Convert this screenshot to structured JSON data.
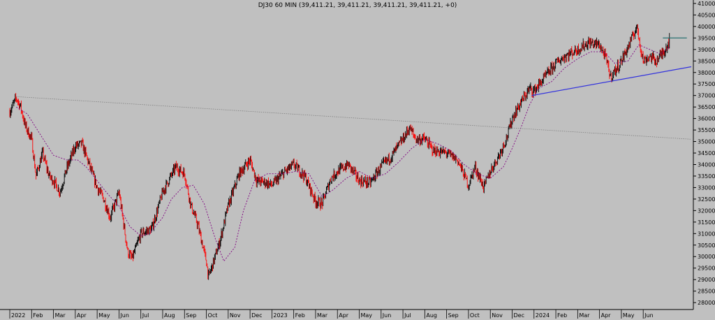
{
  "chart_data": {
    "type": "candlestick",
    "title": "DJ30 60 MIN (39,411.21, 39,411.21, 39,411.21, 39,411.21, +0)",
    "xlabel": "",
    "ylabel": "",
    "ylim": [
      27700,
      41150
    ],
    "y_ticks": [
      28000,
      28500,
      29000,
      29500,
      30000,
      30500,
      31000,
      31500,
      32000,
      32500,
      33000,
      33500,
      34000,
      34500,
      35000,
      35500,
      36000,
      36500,
      37000,
      37500,
      38000,
      38500,
      39000,
      39500,
      40000,
      40500,
      41000
    ],
    "x_months": [
      "2022",
      "Feb",
      "Mar",
      "Apr",
      "May",
      "Jun",
      "Jul",
      "Aug",
      "Sep",
      "Oct",
      "Nov",
      "Dec",
      "2023",
      "Feb",
      "Mar",
      "Apr",
      "May",
      "Jun",
      "Jul",
      "Aug",
      "Sep",
      "Oct",
      "Nov",
      "Dec",
      "2024",
      "Feb",
      "Mar",
      "Apr",
      "May",
      "Jun"
    ],
    "price_path_monthly": [
      [
        0,
        36300
      ],
      [
        0.3,
        36900
      ],
      [
        0.5,
        36500
      ],
      [
        0.7,
        35700
      ],
      [
        1,
        35100
      ],
      [
        1.2,
        33500
      ],
      [
        1.5,
        34500
      ],
      [
        1.8,
        33500
      ],
      [
        2,
        33300
      ],
      [
        2.3,
        32800
      ],
      [
        2.6,
        33800
      ],
      [
        3,
        34800
      ],
      [
        3.3,
        34900
      ],
      [
        3.6,
        34100
      ],
      [
        4,
        33000
      ],
      [
        4.3,
        32500
      ],
      [
        4.6,
        31700
      ],
      [
        5,
        32800
      ],
      [
        5.4,
        30200
      ],
      [
        5.6,
        29900
      ],
      [
        6,
        31000
      ],
      [
        6.5,
        31200
      ],
      [
        7,
        32800
      ],
      [
        7.6,
        33900
      ],
      [
        8,
        33600
      ],
      [
        8.3,
        32200
      ],
      [
        8.6,
        31400
      ],
      [
        9,
        29800
      ],
      [
        9.1,
        29100
      ],
      [
        9.3,
        29700
      ],
      [
        9.6,
        30600
      ],
      [
        10,
        32200
      ],
      [
        10.5,
        33600
      ],
      [
        11,
        34200
      ],
      [
        11.3,
        33300
      ],
      [
        11.8,
        33200
      ],
      [
        12,
        33100
      ],
      [
        12.5,
        33600
      ],
      [
        13,
        34000
      ],
      [
        13.5,
        33500
      ],
      [
        14,
        32400
      ],
      [
        14.3,
        32300
      ],
      [
        14.7,
        33400
      ],
      [
        15,
        33700
      ],
      [
        15.5,
        34000
      ],
      [
        16,
        33300
      ],
      [
        16.5,
        33200
      ],
      [
        17,
        33900
      ],
      [
        17.5,
        34400
      ],
      [
        18,
        35100
      ],
      [
        18.3,
        35600
      ],
      [
        18.6,
        35100
      ],
      [
        19,
        35100
      ],
      [
        19.4,
        34600
      ],
      [
        20,
        34500
      ],
      [
        20.5,
        34200
      ],
      [
        21,
        33100
      ],
      [
        21.3,
        33900
      ],
      [
        21.7,
        33000
      ],
      [
        22,
        33700
      ],
      [
        22.4,
        34400
      ],
      [
        22.8,
        35300
      ],
      [
        23,
        36000
      ],
      [
        23.4,
        36700
      ],
      [
        23.8,
        37300
      ],
      [
        24,
        37200
      ],
      [
        24.5,
        37800
      ],
      [
        25,
        38400
      ],
      [
        25.4,
        38700
      ],
      [
        26,
        39000
      ],
      [
        26.5,
        39300
      ],
      [
        27,
        39200
      ],
      [
        27.3,
        38600
      ],
      [
        27.5,
        37800
      ],
      [
        27.8,
        38200
      ],
      [
        28,
        38500
      ],
      [
        28.5,
        39500
      ],
      [
        28.7,
        40000
      ],
      [
        29,
        38500
      ],
      [
        29.3,
        38700
      ],
      [
        29.6,
        38500
      ],
      [
        30,
        39000
      ],
      [
        30.2,
        39411
      ]
    ],
    "moving_average_monthly": [
      [
        0.3,
        36500
      ],
      [
        0.8,
        36200
      ],
      [
        1.4,
        35300
      ],
      [
        2,
        34400
      ],
      [
        2.6,
        34200
      ],
      [
        3.1,
        34200
      ],
      [
        3.5,
        33900
      ],
      [
        4,
        33300
      ],
      [
        4.5,
        32700
      ],
      [
        5,
        32200
      ],
      [
        5.5,
        31300
      ],
      [
        6,
        30900
      ],
      [
        6.4,
        31000
      ],
      [
        7,
        31700
      ],
      [
        7.4,
        32500
      ],
      [
        7.9,
        33000
      ],
      [
        8.4,
        33100
      ],
      [
        8.9,
        32300
      ],
      [
        9.4,
        30800
      ],
      [
        9.8,
        29800
      ],
      [
        10.3,
        30400
      ],
      [
        10.7,
        32000
      ],
      [
        11.2,
        33300
      ],
      [
        11.8,
        33600
      ],
      [
        12.5,
        33600
      ],
      [
        13.1,
        33700
      ],
      [
        13.7,
        33600
      ],
      [
        14.3,
        32600
      ],
      [
        14.8,
        32900
      ],
      [
        15.4,
        33400
      ],
      [
        16,
        33700
      ],
      [
        16.6,
        33400
      ],
      [
        17.2,
        33600
      ],
      [
        17.8,
        34100
      ],
      [
        18.4,
        34700
      ],
      [
        19,
        35100
      ],
      [
        19.6,
        34900
      ],
      [
        20.2,
        34600
      ],
      [
        20.8,
        34000
      ],
      [
        21.4,
        33600
      ],
      [
        22,
        33400
      ],
      [
        22.6,
        33900
      ],
      [
        23,
        34700
      ],
      [
        23.4,
        35600
      ],
      [
        23.8,
        36600
      ],
      [
        24.2,
        37300
      ],
      [
        24.8,
        37600
      ],
      [
        25.4,
        38200
      ],
      [
        26,
        38600
      ],
      [
        26.6,
        38900
      ],
      [
        27.2,
        38900
      ],
      [
        27.7,
        38400
      ],
      [
        28.3,
        38500
      ],
      [
        28.8,
        39200
      ],
      [
        29.3,
        39000
      ],
      [
        29.8,
        38800
      ],
      [
        30.2,
        39100
      ]
    ],
    "annotations": [
      {
        "type": "trendline",
        "color": "#808080",
        "style": "dotted",
        "points": [
          [
            0.3,
            36950
          ],
          [
            31.2,
            35100
          ]
        ]
      },
      {
        "type": "trendline",
        "color": "#3333dd",
        "style": "solid",
        "points": [
          [
            23.9,
            37000
          ],
          [
            31.2,
            38250
          ]
        ]
      },
      {
        "type": "horizontal_line",
        "color": "#1a6a6a",
        "style": "solid",
        "points": [
          [
            29.9,
            39500
          ],
          [
            31.0,
            39500
          ]
        ]
      }
    ],
    "colors": {
      "background": "#c0c0c0",
      "up": "#000000",
      "down": "#ff0000",
      "moving_average": "#800080",
      "axis": "#000000",
      "trend_grey": "#808080",
      "trend_blue": "#3333dd",
      "level_line": "#1a6a6a"
    },
    "grid": false
  }
}
